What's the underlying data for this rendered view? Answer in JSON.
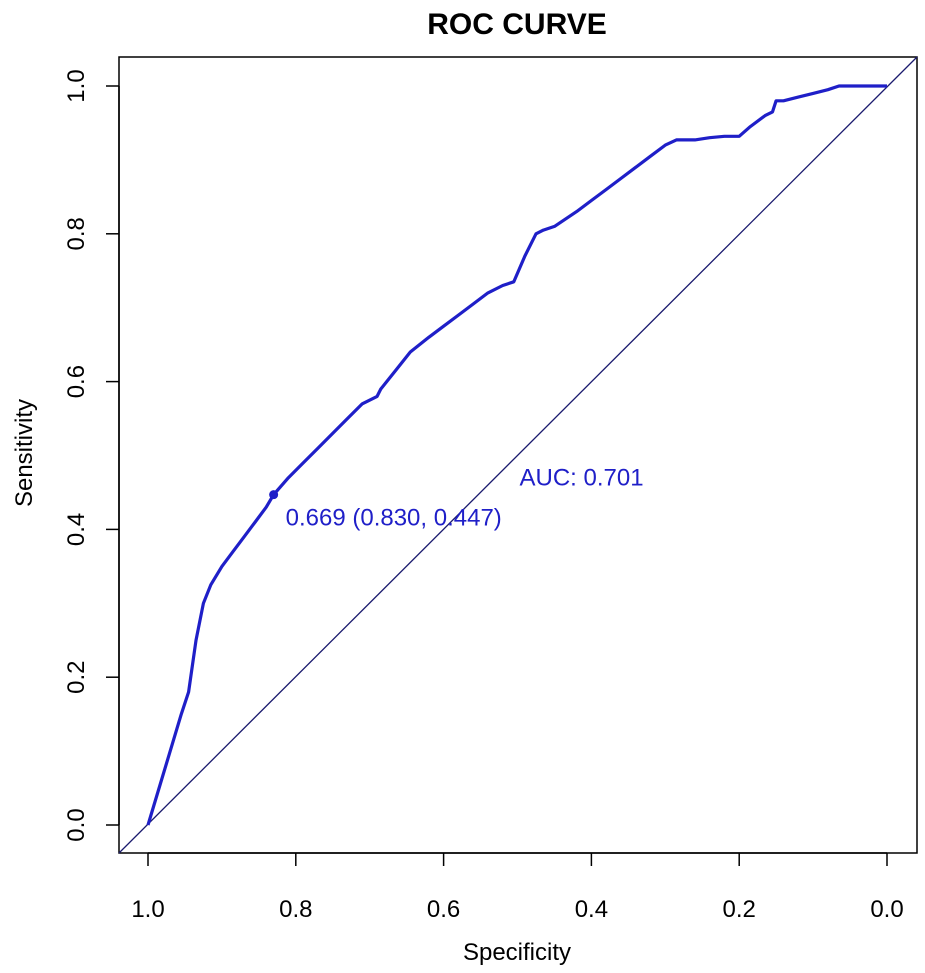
{
  "chart_data": {
    "type": "line",
    "title": "ROC CURVE",
    "xlabel": "Specificity",
    "ylabel": "Sensitivity",
    "xlim": [
      1.0,
      0.0
    ],
    "ylim": [
      0.0,
      1.0
    ],
    "x_reversed": true,
    "x_ticks": [
      1.0,
      0.8,
      0.6,
      0.4,
      0.2,
      0.0
    ],
    "x_tick_labels": [
      "1.0",
      "0.8",
      "0.6",
      "0.4",
      "0.2",
      "0.0"
    ],
    "y_ticks": [
      0.0,
      0.2,
      0.4,
      0.6,
      0.8,
      1.0
    ],
    "y_tick_labels": [
      "0.0",
      "0.2",
      "0.4",
      "0.6",
      "0.8",
      "1.0"
    ],
    "grid": false,
    "legend": "none",
    "colors": {
      "curve": "#1f1fc8",
      "diagonal": "#1a1a6e",
      "annotation": "#1f1fc8",
      "axis": "#000000"
    },
    "series": [
      {
        "specificity": [
          1.0,
          0.985,
          0.97,
          0.955,
          0.945,
          0.935,
          0.925,
          0.915,
          0.9,
          0.885,
          0.87,
          0.855,
          0.84,
          0.83,
          0.81,
          0.79,
          0.77,
          0.75,
          0.73,
          0.71,
          0.69,
          0.685,
          0.665,
          0.645,
          0.62,
          0.6,
          0.58,
          0.56,
          0.54,
          0.52,
          0.505,
          0.49,
          0.475,
          0.465,
          0.45,
          0.42,
          0.4,
          0.38,
          0.36,
          0.34,
          0.32,
          0.3,
          0.285,
          0.26,
          0.24,
          0.22,
          0.2,
          0.185,
          0.165,
          0.155,
          0.15,
          0.14,
          0.12,
          0.1,
          0.08,
          0.065,
          0.04,
          0.02,
          0.0
        ],
        "sensitivity": [
          0.0,
          0.05,
          0.1,
          0.15,
          0.18,
          0.25,
          0.3,
          0.325,
          0.35,
          0.37,
          0.39,
          0.41,
          0.43,
          0.447,
          0.47,
          0.49,
          0.51,
          0.53,
          0.55,
          0.57,
          0.58,
          0.59,
          0.615,
          0.64,
          0.66,
          0.675,
          0.69,
          0.705,
          0.72,
          0.73,
          0.735,
          0.77,
          0.8,
          0.805,
          0.81,
          0.83,
          0.845,
          0.86,
          0.875,
          0.89,
          0.905,
          0.92,
          0.927,
          0.927,
          0.93,
          0.932,
          0.932,
          0.945,
          0.96,
          0.965,
          0.98,
          0.98,
          0.985,
          0.99,
          0.995,
          1.0,
          1.0,
          1.0,
          1.0
        ]
      }
    ],
    "threshold_point": {
      "specificity": 0.83,
      "sensitivity": 0.447,
      "label": "0.669 (0.830, 0.447)"
    },
    "auc_label": "AUC: 0.701",
    "auc_label_position_data": [
      0.5,
      0.47
    ]
  }
}
